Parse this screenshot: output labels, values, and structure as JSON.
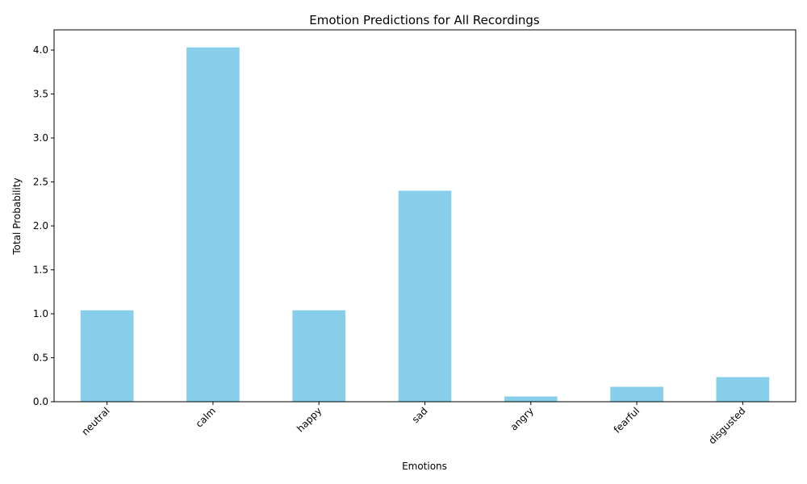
{
  "chart_data": {
    "type": "bar",
    "title": "Emotion Predictions for All Recordings",
    "xlabel": "Emotions",
    "ylabel": "Total Probability",
    "categories": [
      "neutral",
      "calm",
      "happy",
      "sad",
      "angry",
      "fearful",
      "disgusted"
    ],
    "values": [
      1.04,
      4.03,
      1.04,
      2.4,
      0.06,
      0.17,
      0.28
    ],
    "ylim": [
      0,
      4.23
    ],
    "yticks": [
      "0.0",
      "0.5",
      "1.0",
      "1.5",
      "2.0",
      "2.5",
      "3.0",
      "3.5",
      "4.0"
    ],
    "bar_color": "#87ceeb",
    "grid": false,
    "xtick_rotation_deg": 45
  }
}
